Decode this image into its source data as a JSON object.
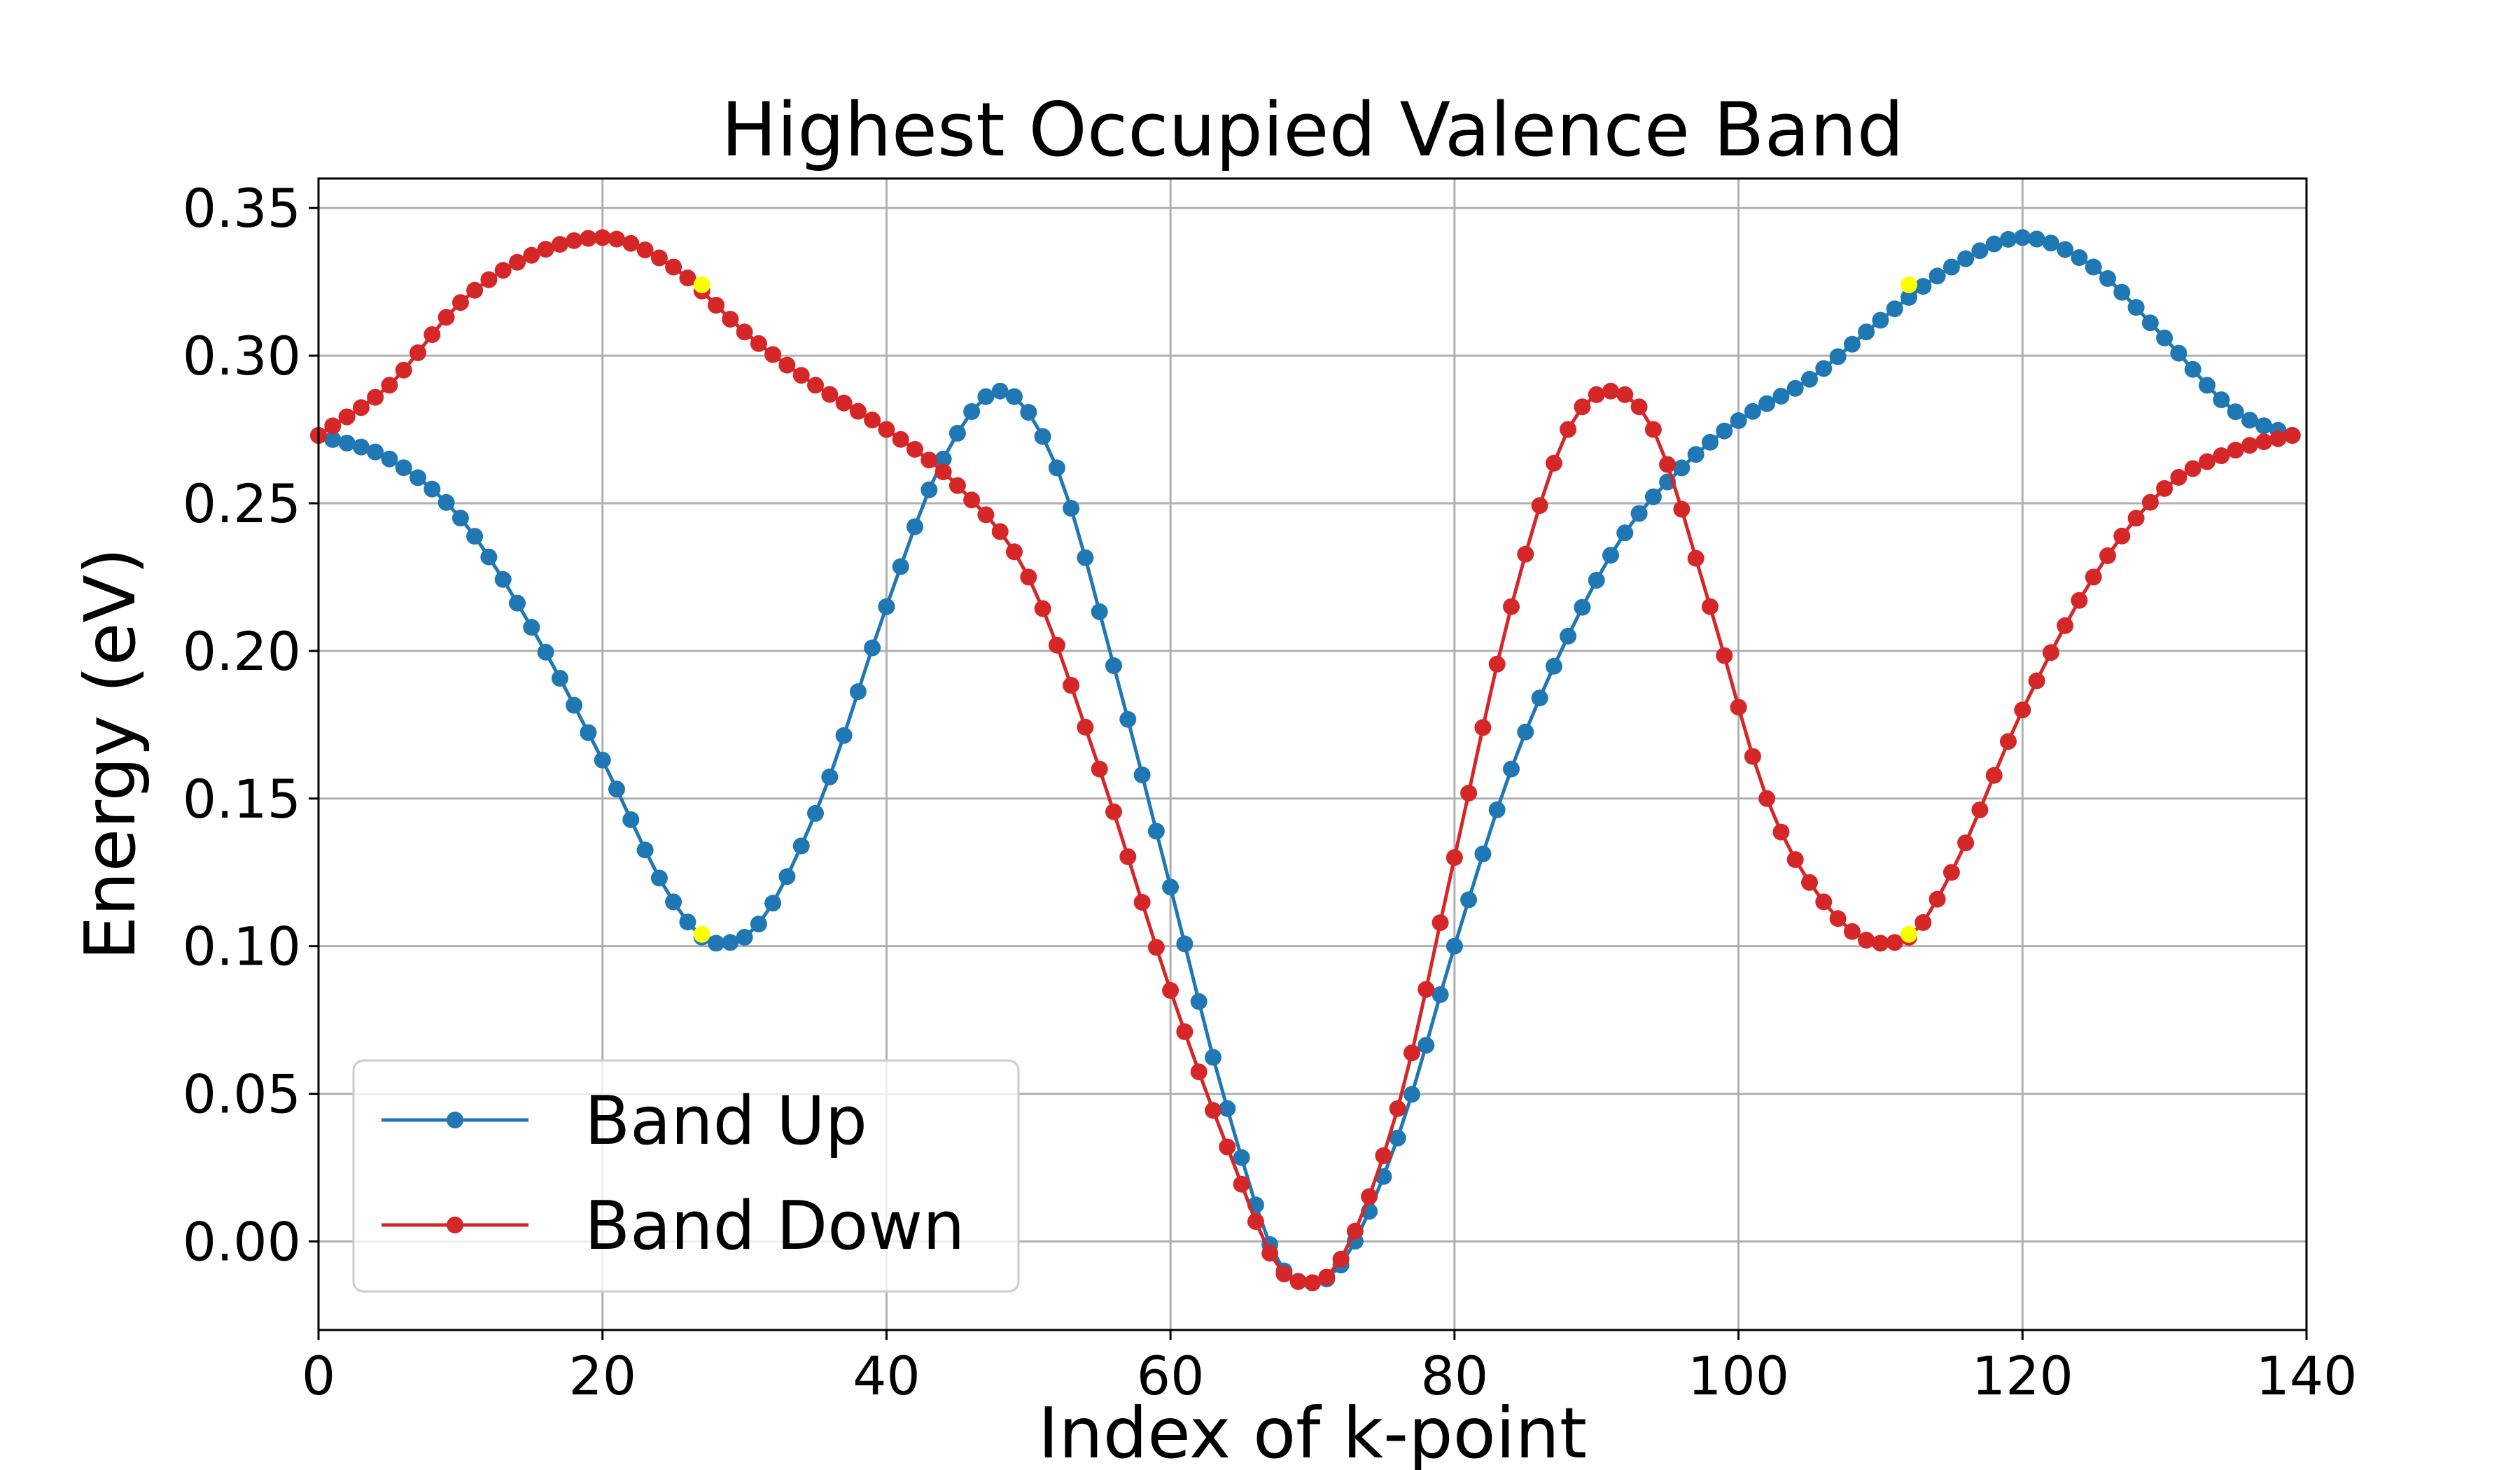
{
  "chart_data": {
    "type": "line",
    "title": "Highest Occupied Valence Band",
    "xlabel": "Index of k-point",
    "ylabel": "Energy (eV)",
    "xlim": [
      0,
      140
    ],
    "ylim": [
      -0.03,
      0.36
    ],
    "xticks": [
      0,
      20,
      40,
      60,
      80,
      100,
      120,
      140
    ],
    "xtick_labels": [
      "0",
      "20",
      "40",
      "60",
      "80",
      "100",
      "120",
      "140"
    ],
    "yticks": [
      0.0,
      0.05,
      0.1,
      0.15,
      0.2,
      0.25,
      0.3,
      0.35
    ],
    "ytick_labels": [
      "0.00",
      "0.05",
      "0.10",
      "0.15",
      "0.20",
      "0.25",
      "0.30",
      "0.35"
    ],
    "grid": true,
    "legend_position": "lower-left",
    "series": [
      {
        "name": "Band Up",
        "color": "#1f77b4",
        "x": [
          0,
          5,
          10,
          15,
          20,
          25,
          28,
          30,
          35,
          40,
          44,
          48,
          52,
          56,
          60,
          64,
          68,
          70,
          72,
          76,
          80,
          84,
          88,
          92,
          96,
          100,
          105,
          110,
          115,
          120,
          125,
          130,
          135,
          139
        ],
        "y": [
          0.273,
          0.265,
          0.245,
          0.208,
          0.163,
          0.115,
          0.101,
          0.103,
          0.145,
          0.215,
          0.265,
          0.288,
          0.262,
          0.195,
          0.12,
          0.045,
          -0.01,
          -0.014,
          -0.008,
          0.035,
          0.1,
          0.16,
          0.205,
          0.24,
          0.262,
          0.278,
          0.292,
          0.312,
          0.33,
          0.34,
          0.33,
          0.306,
          0.281,
          0.273
        ]
      },
      {
        "name": "Band Down",
        "color": "#d62728",
        "x": [
          0,
          5,
          10,
          15,
          20,
          25,
          30,
          35,
          40,
          45,
          50,
          55,
          60,
          64,
          68,
          70,
          72,
          76,
          80,
          84,
          88,
          91,
          94,
          98,
          102,
          106,
          110,
          112,
          115,
          120,
          125,
          130,
          135,
          139
        ],
        "y": [
          0.273,
          0.29,
          0.318,
          0.334,
          0.34,
          0.33,
          0.308,
          0.29,
          0.275,
          0.256,
          0.225,
          0.16,
          0.085,
          0.032,
          -0.011,
          -0.014,
          -0.006,
          0.045,
          0.13,
          0.215,
          0.275,
          0.288,
          0.275,
          0.215,
          0.15,
          0.115,
          0.101,
          0.103,
          0.125,
          0.18,
          0.225,
          0.255,
          0.268,
          0.273
        ]
      }
    ],
    "highlighted_points": {
      "color": "#ffff00",
      "points": [
        {
          "x": 27,
          "y": 0.104
        },
        {
          "x": 27,
          "y": 0.324
        },
        {
          "x": 112,
          "y": 0.104
        },
        {
          "x": 112,
          "y": 0.324
        }
      ]
    }
  }
}
